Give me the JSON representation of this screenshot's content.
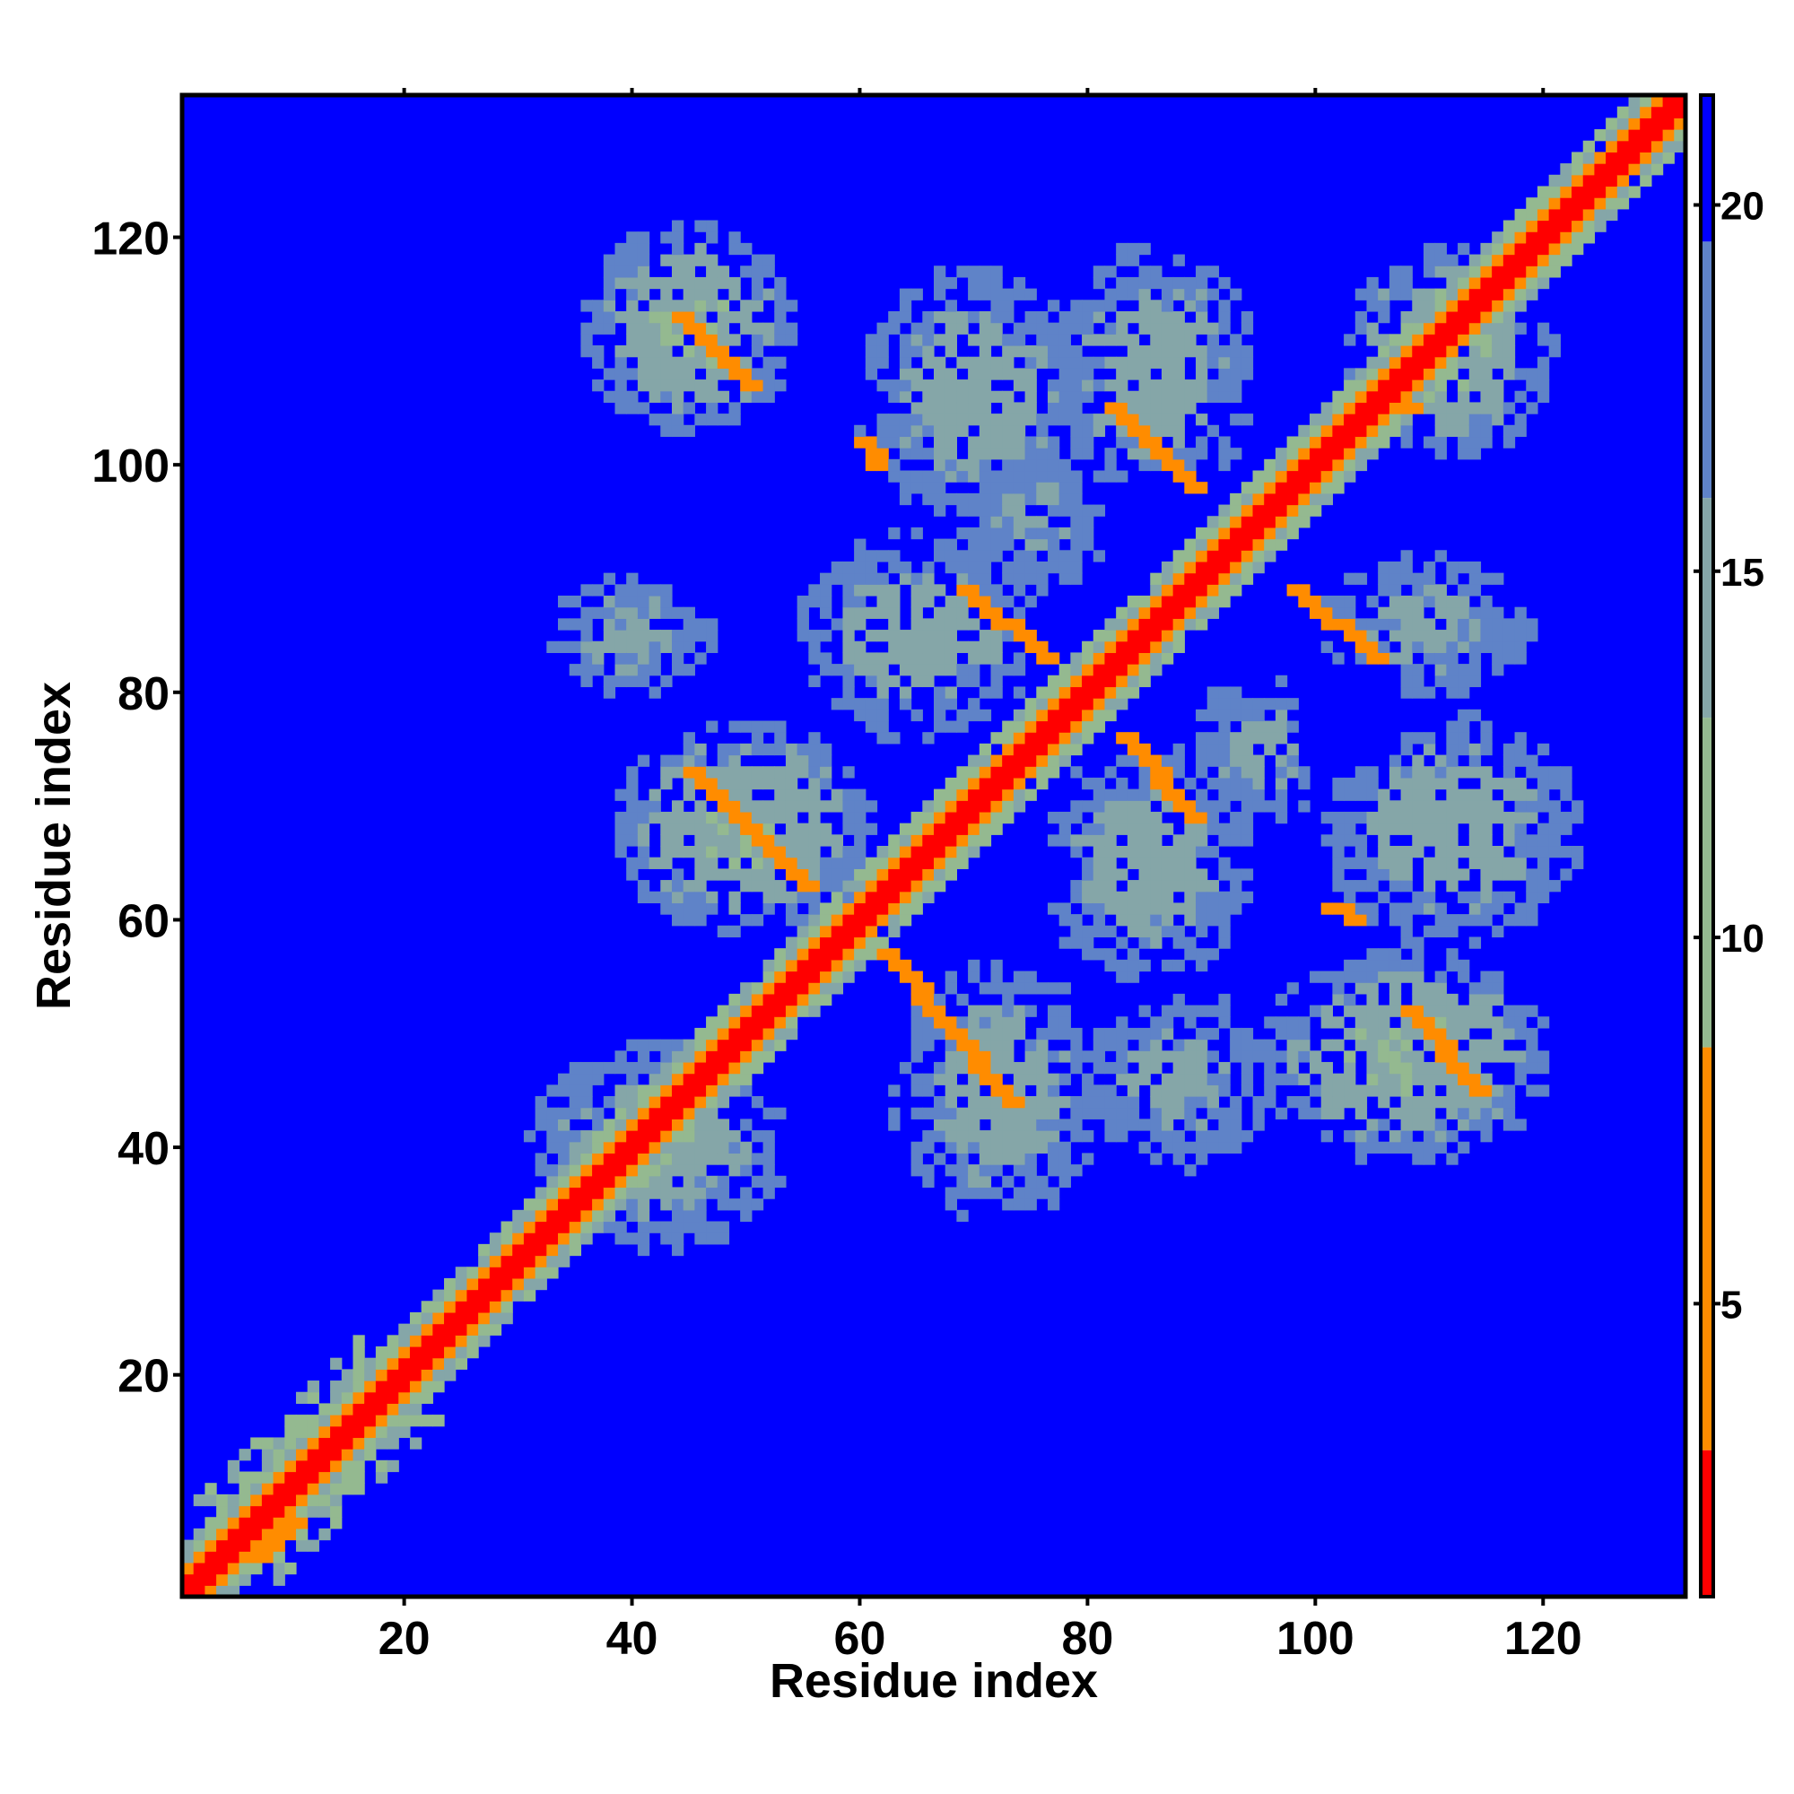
{
  "chart_data": {
    "type": "heatmap",
    "title": "",
    "xlabel": "Residue index",
    "ylabel": "Residue index",
    "xlim": [
      1,
      132
    ],
    "ylim": [
      1,
      132
    ],
    "x_ticks": [
      20,
      40,
      60,
      80,
      100,
      120
    ],
    "y_ticks": [
      20,
      40,
      60,
      80,
      100,
      120
    ],
    "grid": false,
    "colorbar": {
      "position": "right",
      "range": [
        1,
        21.5
      ],
      "ticks": [
        5,
        10,
        15,
        20
      ],
      "colors": {
        "close": "#ff0000",
        "near": "#ff8c00",
        "mid": "#9cc08a",
        "far": "#6f8fc0",
        "background": "#0000ff"
      }
    },
    "notes_on_values": "symmetric contact/distance map; diagonal ~1-3, secondary-structure contacts ~5-8, domain contacts ~10-17, background ~21",
    "features": [
      {
        "kind": "diagonal",
        "from": 1,
        "to": 132,
        "value": 1.5,
        "halo": 11,
        "halo_width": 4
      },
      {
        "kind": "band_dense",
        "x": [
          2,
          16
        ],
        "y": [
          2,
          16
        ],
        "width": 2,
        "value": 11
      },
      {
        "kind": "blob",
        "cx": 45,
        "cy": 112,
        "rx": 8,
        "ry": 8,
        "value": 12
      },
      {
        "kind": "blob",
        "cx": 70,
        "cy": 106,
        "rx": 9,
        "ry": 10,
        "value": 13
      },
      {
        "kind": "blob",
        "cx": 86,
        "cy": 108,
        "rx": 8,
        "ry": 10,
        "value": 13
      },
      {
        "kind": "blob",
        "cx": 40,
        "cy": 85,
        "rx": 7,
        "ry": 5,
        "value": 14
      },
      {
        "kind": "blob",
        "cx": 50,
        "cy": 68,
        "rx": 10,
        "ry": 8,
        "value": 12
      },
      {
        "kind": "blob",
        "cx": 42,
        "cy": 40,
        "rx": 10,
        "ry": 8,
        "value": 13
      },
      {
        "kind": "blob",
        "cx": 72,
        "cy": 45,
        "rx": 8,
        "ry": 10,
        "value": 13
      },
      {
        "kind": "blob",
        "cx": 88,
        "cy": 46,
        "rx": 8,
        "ry": 7,
        "value": 14
      },
      {
        "kind": "blob",
        "cx": 108,
        "cy": 48,
        "rx": 11,
        "ry": 8,
        "value": 12
      },
      {
        "kind": "blob",
        "cx": 112,
        "cy": 68,
        "rx": 10,
        "ry": 9,
        "value": 13
      },
      {
        "kind": "blob",
        "cx": 110,
        "cy": 86,
        "rx": 9,
        "ry": 6,
        "value": 14
      },
      {
        "kind": "blob",
        "cx": 112,
        "cy": 110,
        "rx": 8,
        "ry": 8,
        "value": 12
      },
      {
        "kind": "blob",
        "cx": 65,
        "cy": 85,
        "rx": 9,
        "ry": 8,
        "value": 13
      },
      {
        "kind": "blob",
        "cx": 85,
        "cy": 65,
        "rx": 8,
        "ry": 9,
        "value": 13
      },
      {
        "kind": "blob",
        "cx": 75,
        "cy": 95,
        "rx": 6,
        "ry": 6,
        "value": 14
      },
      {
        "kind": "blob",
        "cx": 95,
        "cy": 75,
        "rx": 6,
        "ry": 6,
        "value": 14
      },
      {
        "kind": "hole",
        "cx": 87,
        "cy": 95,
        "r": 5
      },
      {
        "kind": "hole",
        "cx": 103,
        "cy": 78,
        "r": 5
      },
      {
        "kind": "hole",
        "cx": 76,
        "cy": 64,
        "r": 3
      },
      {
        "kind": "strand",
        "from": [
          44,
          113
        ],
        "to": [
          50,
          107
        ],
        "value": 6
      },
      {
        "kind": "strand",
        "from": [
          60,
          102
        ],
        "to": [
          61,
          100
        ],
        "value": 6
      },
      {
        "kind": "strand",
        "from": [
          82,
          105
        ],
        "to": [
          89,
          98
        ],
        "value": 6
      },
      {
        "kind": "strand",
        "from": [
          69,
          89
        ],
        "to": [
          76,
          83
        ],
        "value": 6
      },
      {
        "kind": "strand",
        "from": [
          45,
          73
        ],
        "to": [
          55,
          63
        ],
        "value": 6
      },
      {
        "kind": "strand",
        "from": [
          83,
          76
        ],
        "to": [
          89,
          69
        ],
        "value": 6
      },
      {
        "kind": "strand",
        "from": [
          98,
          89
        ],
        "to": [
          105,
          83
        ],
        "value": 6
      },
      {
        "kind": "strand",
        "from": [
          62,
          57
        ],
        "to": [
          73,
          44
        ],
        "value": 6
      },
      {
        "kind": "strand",
        "from": [
          106,
          107
        ],
        "to": [
          108,
          105
        ],
        "value": 6
      },
      {
        "kind": "strand",
        "from": [
          101,
          61
        ],
        "to": [
          103,
          60
        ],
        "value": 6
      },
      {
        "kind": "strand",
        "from": [
          108,
          52
        ],
        "to": [
          114,
          45
        ],
        "value": 6
      },
      {
        "kind": "strand",
        "from": [
          12,
          14
        ],
        "to": [
          15,
          17
        ],
        "value": 6
      },
      {
        "kind": "strand",
        "from": [
          7,
          4
        ],
        "to": [
          10,
          7
        ],
        "value": 6
      },
      {
        "kind": "strand",
        "from": [
          30,
          31
        ],
        "to": [
          33,
          34
        ],
        "value": 6
      }
    ]
  }
}
